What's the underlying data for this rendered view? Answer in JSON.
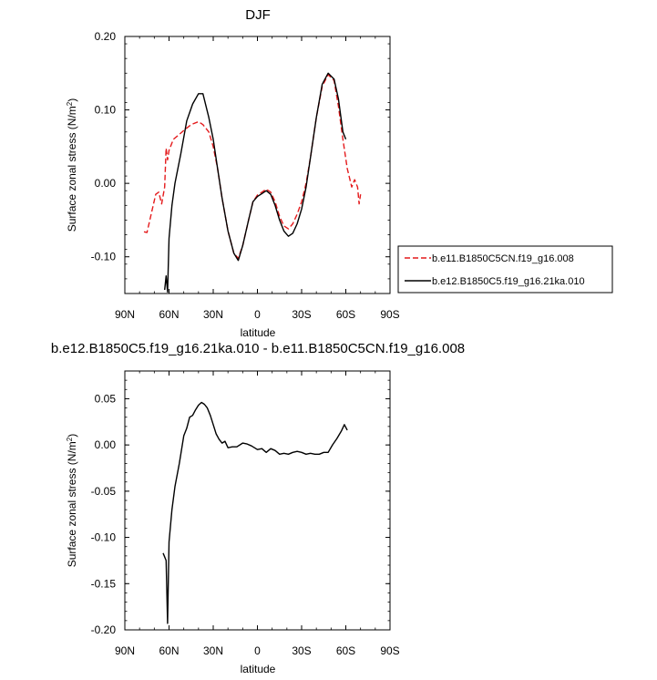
{
  "chart_data": [
    {
      "type": "line",
      "title": "DJF",
      "xlabel": "latitude",
      "ylabel": "Surface zonal stress (N/m²)",
      "ylabel_base": "Surface zonal stress (N/m",
      "ylabel_sup": "2",
      "ylabel_tail": ")",
      "x_axis_note": "latitude in degrees; positive = North, negative = South",
      "xlim": [
        90,
        -90
      ],
      "ylim": [
        -0.15,
        0.2
      ],
      "x_ticks": [
        90,
        60,
        30,
        0,
        -30,
        -60,
        -90
      ],
      "x_tick_labels": [
        "90N",
        "60N",
        "30N",
        "0",
        "30S",
        "60S",
        "90S"
      ],
      "y_ticks": [
        0.2,
        0.1,
        0.0,
        -0.1
      ],
      "y_tick_labels": [
        "0.20",
        "0.10",
        "0.00",
        "-0.10"
      ],
      "legend_position": "right",
      "series": [
        {
          "name": "b.e11.B1850C5CN.f19_g16.008",
          "color": "#e41a1c",
          "dash": "dashed",
          "x": [
            77,
            75,
            69,
            67,
            65,
            63,
            62,
            61,
            60,
            57,
            54,
            50,
            45,
            40,
            37,
            33,
            30,
            27,
            24,
            20,
            16,
            13,
            10,
            6,
            3,
            0,
            -3,
            -6,
            -9,
            -12,
            -15,
            -18,
            -21,
            -24,
            -27,
            -30,
            -33,
            -36,
            -40,
            -44,
            -48,
            -52,
            -55,
            -58,
            -61,
            -64,
            -66,
            -68,
            -69,
            -70
          ],
          "y": [
            -0.066,
            -0.067,
            -0.015,
            -0.012,
            -0.028,
            -0.005,
            0.048,
            0.032,
            0.045,
            0.06,
            0.065,
            0.072,
            0.08,
            0.084,
            0.08,
            0.07,
            0.05,
            0.02,
            -0.02,
            -0.065,
            -0.095,
            -0.102,
            -0.085,
            -0.05,
            -0.025,
            -0.016,
            -0.012,
            -0.008,
            -0.012,
            -0.025,
            -0.045,
            -0.058,
            -0.062,
            -0.055,
            -0.042,
            -0.025,
            0.0,
            0.035,
            0.09,
            0.132,
            0.148,
            0.14,
            0.105,
            0.06,
            0.02,
            -0.005,
            0.005,
            -0.005,
            -0.028,
            -0.015
          ]
        },
        {
          "name": "b.e12.B1850C5.f19_g16.21ka.010",
          "color": "#000000",
          "dash": "solid",
          "x": [
            63,
            62,
            61,
            60,
            58,
            56,
            52,
            48,
            44,
            40,
            37,
            33,
            30,
            27,
            24,
            20,
            16,
            13,
            10,
            6,
            3,
            0,
            -3,
            -6,
            -9,
            -12,
            -15,
            -18,
            -21,
            -24,
            -27,
            -30,
            -33,
            -36,
            -40,
            -44,
            -48,
            -52,
            -55,
            -58,
            -60
          ],
          "y": [
            -0.145,
            -0.126,
            -0.148,
            -0.075,
            -0.03,
            0.0,
            0.04,
            0.085,
            0.108,
            0.122,
            0.122,
            0.09,
            0.06,
            0.02,
            -0.02,
            -0.065,
            -0.095,
            -0.105,
            -0.085,
            -0.05,
            -0.025,
            -0.018,
            -0.014,
            -0.01,
            -0.015,
            -0.03,
            -0.05,
            -0.065,
            -0.072,
            -0.068,
            -0.055,
            -0.035,
            -0.005,
            0.035,
            0.09,
            0.135,
            0.15,
            0.142,
            0.115,
            0.07,
            0.06
          ]
        }
      ]
    },
    {
      "type": "line",
      "title": "b.e12.B1850C5.f19_g16.21ka.010 - b.e11.B1850C5CN.f19_g16.008",
      "xlabel": "latitude",
      "ylabel": "Surface zonal stress (N/m²)",
      "ylabel_base": "Surface zonal stress (N/m",
      "ylabel_sup": "2",
      "ylabel_tail": ")",
      "x_axis_note": "latitude in degrees; positive = North, negative = South",
      "xlim": [
        90,
        -90
      ],
      "ylim": [
        -0.2,
        0.08
      ],
      "x_ticks": [
        90,
        60,
        30,
        0,
        -30,
        -60,
        -90
      ],
      "x_tick_labels": [
        "90N",
        "60N",
        "30N",
        "0",
        "30S",
        "60S",
        "90S"
      ],
      "y_ticks": [
        0.05,
        0.0,
        -0.05,
        -0.1,
        -0.15,
        -0.2
      ],
      "y_tick_labels": [
        "0.05",
        "0.00",
        "-0.05",
        "-0.10",
        "-0.15",
        "-0.20"
      ],
      "series": [
        {
          "color": "#000000",
          "dash": "solid",
          "x": [
            64,
            62,
            61,
            60,
            58,
            56,
            53,
            50,
            48,
            46,
            44,
            42,
            40,
            38,
            36,
            34,
            32,
            30,
            28,
            26,
            24,
            22,
            20,
            17,
            14,
            10,
            7,
            4,
            0,
            -3,
            -6,
            -9,
            -12,
            -15,
            -18,
            -21,
            -24,
            -27,
            -30,
            -33,
            -36,
            -39,
            -42,
            -45,
            -48,
            -51,
            -54,
            -57,
            -59,
            -61
          ],
          "y": [
            -0.117,
            -0.125,
            -0.193,
            -0.105,
            -0.07,
            -0.045,
            -0.02,
            0.01,
            0.018,
            0.03,
            0.032,
            0.038,
            0.043,
            0.046,
            0.044,
            0.04,
            0.032,
            0.022,
            0.012,
            0.006,
            0.002,
            0.004,
            -0.003,
            -0.002,
            -0.002,
            0.002,
            0.001,
            -0.001,
            -0.005,
            -0.004,
            -0.008,
            -0.004,
            -0.006,
            -0.01,
            -0.009,
            -0.01,
            -0.008,
            -0.007,
            -0.008,
            -0.01,
            -0.009,
            -0.01,
            -0.01,
            -0.008,
            -0.008,
            0.0,
            0.007,
            0.015,
            0.022,
            0.016
          ]
        }
      ]
    }
  ]
}
